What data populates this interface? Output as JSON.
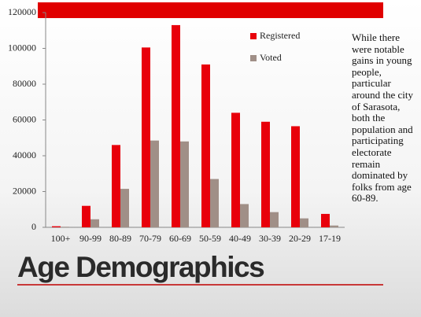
{
  "chart_data": {
    "type": "bar",
    "title": "Age Demographics",
    "annotation": "While there were notable gains in young people, particular around the city of Sarasota, both the population and participating electorate remain dominated by folks from age 60-89.",
    "categories": [
      "100+",
      "90-99",
      "80-89",
      "70-79",
      "60-69",
      "50-59",
      "40-49",
      "30-39",
      "20-29",
      "17-19"
    ],
    "series": [
      {
        "name": "Registered",
        "color": "#e8000b",
        "values": [
          600,
          12000,
          46000,
          100500,
          113000,
          91000,
          64000,
          59000,
          56500,
          7500
        ]
      },
      {
        "name": "Voted",
        "color": "#a08f87",
        "values": [
          300,
          4500,
          21500,
          48500,
          48000,
          27000,
          13000,
          8500,
          5000,
          1000
        ]
      }
    ],
    "ylim": [
      0,
      120000
    ],
    "yticks": [
      0,
      20000,
      40000,
      60000,
      80000,
      100000,
      120000
    ]
  }
}
